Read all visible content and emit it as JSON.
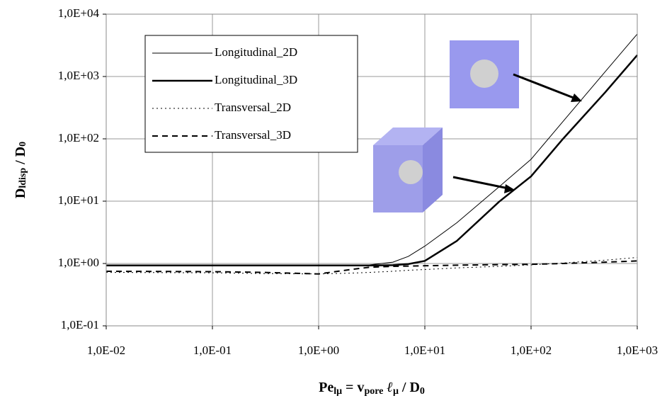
{
  "chart_data": {
    "type": "line",
    "y_label_parts": [
      "D",
      "ldisp",
      " / D",
      "0"
    ],
    "x_label_parts": [
      "Pe",
      "lμ",
      " =  v",
      "pore",
      "  ℓ",
      "μ",
      "  / D",
      "0"
    ],
    "x": [
      0.01,
      0.1,
      0.3,
      1,
      2,
      3,
      5,
      7,
      10,
      20,
      50,
      100,
      200,
      500,
      1000
    ],
    "series": [
      {
        "name": "Longitudinal_2D",
        "color": "#000000",
        "width": 1,
        "line_style": "solid",
        "values": [
          0.93,
          0.93,
          0.93,
          0.93,
          0.93,
          0.95,
          1.05,
          1.3,
          1.9,
          4.5,
          17,
          47,
          190,
          1200,
          4800
        ]
      },
      {
        "name": "Longitudinal_3D",
        "color": "#000000",
        "width": 2.5,
        "line_style": "solid",
        "values": [
          0.93,
          0.93,
          0.93,
          0.93,
          0.93,
          0.93,
          0.94,
          0.98,
          1.1,
          2.3,
          9.8,
          25,
          100,
          560,
          2200
        ]
      },
      {
        "name": "Transversal_2D",
        "color": "#000000",
        "width": 1,
        "line_style": "dotted",
        "values": [
          0.72,
          0.71,
          0.69,
          0.68,
          0.7,
          0.72,
          0.75,
          0.78,
          0.8,
          0.85,
          0.9,
          0.95,
          1.02,
          1.13,
          1.25
        ]
      },
      {
        "name": "Transversal_3D",
        "color": "#000000",
        "width": 2,
        "line_style": "dashed",
        "values": [
          0.75,
          0.74,
          0.72,
          0.68,
          0.8,
          0.87,
          0.9,
          0.91,
          0.92,
          0.94,
          0.96,
          0.97,
          1.0,
          1.05,
          1.1
        ]
      }
    ],
    "log_x": true,
    "log_y": true,
    "grid": true,
    "xlim": [
      0.01,
      1000
    ],
    "ylim": [
      0.1,
      10000
    ],
    "xticks": [
      {
        "value": 0.01,
        "label": "1,0E-02"
      },
      {
        "value": 0.1,
        "label": "1,0E-01"
      },
      {
        "value": 1,
        "label": "1,0E+00"
      },
      {
        "value": 10,
        "label": "1,0E+01"
      },
      {
        "value": 100,
        "label": "1,0E+02"
      },
      {
        "value": 1000,
        "label": "1,0E+03"
      }
    ],
    "yticks": [
      {
        "value": 0.1,
        "label": "1,0E-01"
      },
      {
        "value": 1,
        "label": "1,0E+00"
      },
      {
        "value": 10,
        "label": "1,0E+01"
      },
      {
        "value": 100,
        "label": "1,0E+02"
      },
      {
        "value": 1000,
        "label": "1,0E+03"
      },
      {
        "value": 10000,
        "label": "1,0E+04"
      }
    ],
    "legend": "top-left"
  }
}
